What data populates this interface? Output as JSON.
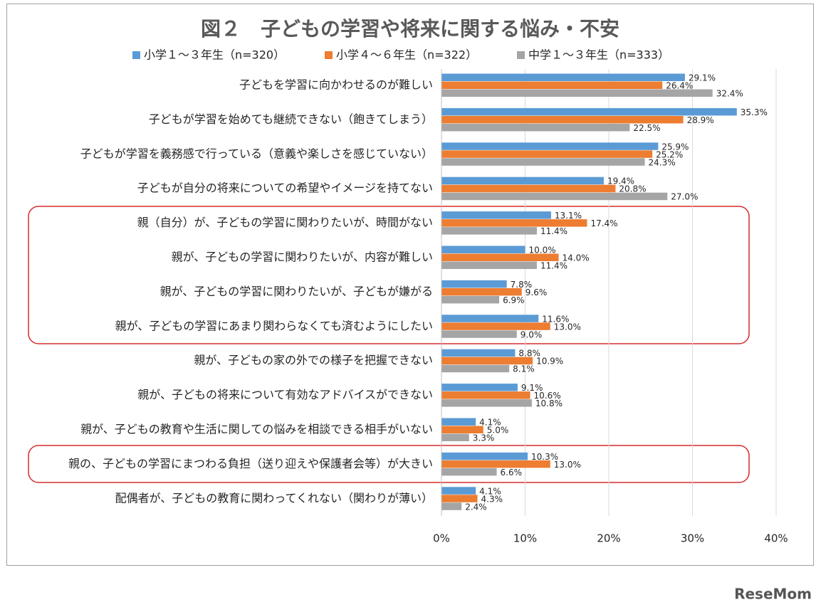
{
  "chart_data": {
    "type": "hbar",
    "title": "図２　子どもの学習や将来に関する悩み・不安",
    "categories": [
      "子どもを学習に向かわせるのが難しい",
      "子どもが学習を始めても継続できない（飽きてしまう）",
      "子どもが学習を義務感で行っている（意義や楽しさを感じていない）",
      "子どもが自分の将来についての希望やイメージを持てない",
      "親（自分）が、子どもの学習に関わりたいが、時間がない",
      "親が、子どもの学習に関わりたいが、内容が難しい",
      "親が、子どもの学習に関わりたいが、子どもが嫌がる",
      "親が、子どもの学習にあまり関わらなくても済むようにしたい",
      "親が、子どもの家の外での様子を把握できない",
      "親が、子どもの将来について有効なアドバイスができない",
      "親が、子どもの教育や生活に関しての悩みを相談できる相手がいない",
      "親の、子どもの学習にまつわる負担（送り迎えや保護者会等）が大きい",
      "配偶者が、子どもの教育に関わってくれない（関わりが薄い）"
    ],
    "series": [
      {
        "name": "小学１～３年生（n=320）",
        "color": "#5b9bd5",
        "values": [
          29.1,
          35.3,
          25.9,
          19.4,
          13.1,
          10.0,
          7.8,
          11.6,
          8.8,
          9.1,
          4.1,
          10.3,
          4.1
        ],
        "value_labels": [
          "29.1%",
          "35.3%",
          "25.9%",
          "19.4%",
          "13.1%",
          "10.0%",
          "7.8%",
          "11.6%",
          "8.8%",
          "9.1%",
          "4.1%",
          "10.3%",
          "4.1%"
        ]
      },
      {
        "name": "小学４～６年生（n=322）",
        "color": "#ed7d31",
        "values": [
          26.4,
          28.9,
          25.2,
          20.8,
          17.4,
          14.0,
          9.6,
          13.0,
          10.9,
          10.6,
          5.0,
          13.0,
          4.3
        ],
        "value_labels": [
          "26.4%",
          "28.9%",
          "25.2%",
          "20.8%",
          "17.4%",
          "14.0%",
          "9.6%",
          "13.0%",
          "10.9%",
          "10.6%",
          "5.0%",
          "13.0%",
          "4.3%"
        ]
      },
      {
        "name": "中学１～３年生（n=333）",
        "color": "#a5a5a5",
        "values": [
          32.4,
          22.5,
          24.3,
          27.0,
          11.4,
          11.4,
          6.9,
          9.0,
          8.1,
          10.8,
          3.3,
          6.6,
          2.4
        ],
        "value_labels": [
          "32.4%",
          "22.5%",
          "24.3%",
          "27.0%",
          "11.4%",
          "11.4%",
          "6.9%",
          "9.0%",
          "8.1%",
          "10.8%",
          "3.3%",
          "6.6%",
          "2.4%"
        ]
      }
    ],
    "xlim": [
      0,
      40
    ],
    "xticks": [
      {
        "value": 0,
        "label": "0%"
      },
      {
        "value": 10,
        "label": "10%"
      },
      {
        "value": 20,
        "label": "20%"
      },
      {
        "value": 30,
        "label": "30%"
      },
      {
        "value": 40,
        "label": "40%"
      }
    ],
    "grid": true
  },
  "watermark": "ReseMom"
}
